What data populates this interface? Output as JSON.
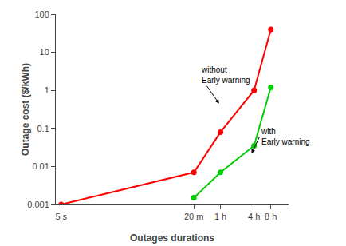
{
  "chart_data": {
    "type": "line",
    "log": true,
    "xlabel": "Outages durations",
    "ylabel": "Outage cost ($/kWh)",
    "xlim": [
      4,
      60000
    ],
    "xticks": [
      {
        "value": 5,
        "label": "5 s"
      },
      {
        "value": 1200,
        "label": "20 m"
      },
      {
        "value": 3600,
        "label": "1 h"
      },
      {
        "value": 14400,
        "label": "4 h"
      },
      {
        "value": 28800,
        "label": "8 h"
      }
    ],
    "ylim": [
      0.001,
      100
    ],
    "yticks": [
      0.001,
      0.01,
      0.1,
      1,
      10,
      100
    ],
    "grid": false,
    "series": [
      {
        "color": "#ff0000",
        "marker": "circle",
        "x": [
          5,
          1200,
          3600,
          14400,
          28800
        ],
        "values": [
          0.001,
          0.007,
          0.08,
          1.0,
          40.0
        ]
      },
      {
        "color": "#00cc00",
        "marker": "circle",
        "x": [
          1200,
          3600,
          14400,
          28800
        ],
        "values": [
          0.0015,
          0.007,
          0.035,
          1.2
        ]
      }
    ],
    "annotations": [
      {
        "text": "without\nEarly warning",
        "x": 3400,
        "y": 0.45,
        "text_x": 1500,
        "text_y": 2.5
      },
      {
        "text": "with\nEarly warning",
        "x": 13000,
        "y": 0.022,
        "text_x": 18000,
        "text_y": 0.06
      }
    ]
  }
}
